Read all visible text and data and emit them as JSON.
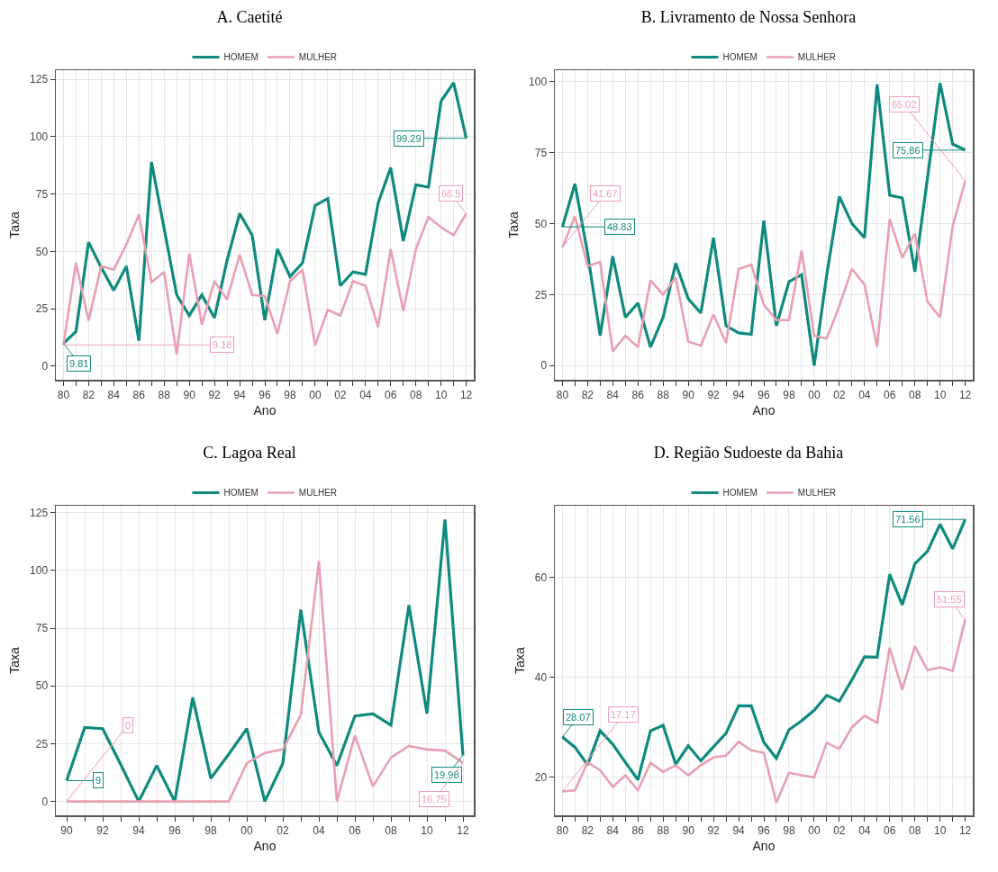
{
  "chart_data": [
    {
      "type": "line",
      "title": "A. Caetité",
      "xlabel": "Ano",
      "ylabel": "Taxa",
      "legend": "top",
      "grid": true,
      "x": [
        1980,
        1981,
        1982,
        1983,
        1984,
        1985,
        1986,
        1987,
        1988,
        1989,
        1990,
        1991,
        1992,
        1993,
        1994,
        1995,
        1996,
        1997,
        1998,
        1999,
        2000,
        2001,
        2002,
        2003,
        2004,
        2005,
        2006,
        2007,
        2008,
        2009,
        2010,
        2011,
        2012
      ],
      "xlim": [
        1979.4,
        2012.6
      ],
      "xticks": [
        {
          "value": 1980,
          "label": "80"
        },
        {
          "value": 1981,
          "label": null
        },
        {
          "value": 1982,
          "label": "82"
        },
        {
          "value": 1983,
          "label": null
        },
        {
          "value": 1984,
          "label": "84"
        },
        {
          "value": 1985,
          "label": null
        },
        {
          "value": 1986,
          "label": "86"
        },
        {
          "value": 1987,
          "label": null
        },
        {
          "value": 1988,
          "label": "88"
        },
        {
          "value": 1989,
          "label": null
        },
        {
          "value": 1990,
          "label": "90"
        },
        {
          "value": 1991,
          "label": null
        },
        {
          "value": 1992,
          "label": "92"
        },
        {
          "value": 1993,
          "label": null
        },
        {
          "value": 1994,
          "label": "94"
        },
        {
          "value": 1995,
          "label": null
        },
        {
          "value": 1996,
          "label": "96"
        },
        {
          "value": 1997,
          "label": null
        },
        {
          "value": 1998,
          "label": "98"
        },
        {
          "value": 1999,
          "label": null
        },
        {
          "value": 2000,
          "label": "00"
        },
        {
          "value": 2001,
          "label": null
        },
        {
          "value": 2002,
          "label": "02"
        },
        {
          "value": 2003,
          "label": null
        },
        {
          "value": 2004,
          "label": "04"
        },
        {
          "value": 2005,
          "label": null
        },
        {
          "value": 2006,
          "label": "06"
        },
        {
          "value": 2007,
          "label": null
        },
        {
          "value": 2008,
          "label": "08"
        },
        {
          "value": 2009,
          "label": null
        },
        {
          "value": 2010,
          "label": "10"
        },
        {
          "value": 2011,
          "label": null
        },
        {
          "value": 2012,
          "label": "12"
        }
      ],
      "ylim": [
        -6,
        129
      ],
      "yticks": [
        0,
        25,
        50,
        75,
        100,
        125
      ],
      "series": [
        {
          "name": "HOMEM",
          "color": "#0e8a7e",
          "values": [
            9.81,
            15,
            54,
            43,
            33,
            43.5,
            11,
            89,
            60,
            31,
            22,
            31,
            21,
            46,
            66.5,
            57,
            20,
            51,
            39,
            45,
            70,
            73,
            35,
            41,
            40,
            71,
            86.5,
            54.5,
            79,
            78,
            115.5,
            123.5,
            99.29
          ],
          "value_labels": [
            "9.81",
            null,
            null,
            null,
            null,
            null,
            null,
            null,
            null,
            null,
            null,
            null,
            null,
            null,
            null,
            null,
            null,
            null,
            null,
            null,
            null,
            null,
            null,
            null,
            null,
            null,
            null,
            null,
            null,
            null,
            null,
            null,
            "99.29"
          ]
        },
        {
          "name": "MULHER",
          "color": "#e8a0b0",
          "values": [
            9.18,
            45,
            19.7,
            43.5,
            42,
            53,
            66,
            36.5,
            41,
            5,
            49,
            18,
            37,
            29,
            48.5,
            31,
            30.5,
            14,
            37,
            42,
            9,
            24.5,
            22,
            37,
            35,
            17,
            51,
            24,
            51,
            65,
            60.5,
            57,
            66.5
          ],
          "value_labels": [
            "9.18",
            null,
            null,
            null,
            null,
            null,
            null,
            null,
            null,
            null,
            null,
            null,
            null,
            null,
            null,
            null,
            null,
            null,
            null,
            null,
            null,
            null,
            null,
            null,
            null,
            null,
            null,
            null,
            null,
            null,
            null,
            null,
            "66.5"
          ]
        }
      ]
    },
    {
      "type": "line",
      "title": "B. Livramento de Nossa Senhora",
      "xlabel": "Ano",
      "ylabel": "Taxa",
      "legend": "top",
      "grid": true,
      "x": [
        1980,
        1981,
        1982,
        1983,
        1984,
        1985,
        1986,
        1987,
        1988,
        1989,
        1990,
        1991,
        1992,
        1993,
        1994,
        1995,
        1996,
        1997,
        1998,
        1999,
        2000,
        2001,
        2002,
        2003,
        2004,
        2005,
        2006,
        2007,
        2008,
        2009,
        2010,
        2011,
        2012
      ],
      "xlim": [
        1979.4,
        2012.6
      ],
      "xticks": [
        {
          "value": 1980,
          "label": "80"
        },
        {
          "value": 1981,
          "label": null
        },
        {
          "value": 1982,
          "label": "82"
        },
        {
          "value": 1983,
          "label": null
        },
        {
          "value": 1984,
          "label": "84"
        },
        {
          "value": 1985,
          "label": null
        },
        {
          "value": 1986,
          "label": "86"
        },
        {
          "value": 1987,
          "label": null
        },
        {
          "value": 1988,
          "label": "88"
        },
        {
          "value": 1989,
          "label": null
        },
        {
          "value": 1990,
          "label": "90"
        },
        {
          "value": 1991,
          "label": null
        },
        {
          "value": 1992,
          "label": "92"
        },
        {
          "value": 1993,
          "label": null
        },
        {
          "value": 1994,
          "label": "94"
        },
        {
          "value": 1995,
          "label": null
        },
        {
          "value": 1996,
          "label": "96"
        },
        {
          "value": 1997,
          "label": null
        },
        {
          "value": 1998,
          "label": "98"
        },
        {
          "value": 1999,
          "label": null
        },
        {
          "value": 2000,
          "label": "00"
        },
        {
          "value": 2001,
          "label": null
        },
        {
          "value": 2002,
          "label": "02"
        },
        {
          "value": 2003,
          "label": null
        },
        {
          "value": 2004,
          "label": "04"
        },
        {
          "value": 2005,
          "label": null
        },
        {
          "value": 2006,
          "label": "06"
        },
        {
          "value": 2007,
          "label": null
        },
        {
          "value": 2008,
          "label": "08"
        },
        {
          "value": 2009,
          "label": null
        },
        {
          "value": 2010,
          "label": "10"
        },
        {
          "value": 2011,
          "label": null
        },
        {
          "value": 2012,
          "label": "12"
        }
      ],
      "ylim": [
        -5,
        104
      ],
      "yticks": [
        0,
        25,
        50,
        75,
        100
      ],
      "series": [
        {
          "name": "HOMEM",
          "color": "#0e8a7e",
          "values": [
            48.83,
            64,
            39.5,
            10.5,
            38.5,
            17,
            22,
            6.5,
            17,
            36,
            23.5,
            18.5,
            45,
            14,
            11.5,
            11,
            51,
            14,
            29.5,
            32,
            0,
            32,
            59.5,
            50,
            45,
            99,
            60,
            59,
            33,
            66,
            99.5,
            78,
            75.86
          ],
          "value_labels": [
            "48.83",
            null,
            null,
            null,
            null,
            null,
            null,
            null,
            null,
            null,
            null,
            null,
            null,
            null,
            null,
            null,
            null,
            null,
            null,
            null,
            null,
            null,
            null,
            null,
            null,
            null,
            null,
            null,
            null,
            null,
            null,
            null,
            "75.86"
          ]
        },
        {
          "name": "MULHER",
          "color": "#e8a0b0",
          "values": [
            41.67,
            52.5,
            35,
            36.5,
            5,
            10.5,
            6.5,
            30,
            25,
            31,
            8.5,
            7,
            18,
            8,
            34,
            35.5,
            21.5,
            16,
            16,
            40.5,
            10.5,
            9.5,
            21,
            34,
            28.5,
            6.5,
            51.5,
            38,
            46.5,
            22.5,
            17,
            49,
            65.02
          ],
          "value_labels": [
            "41.67",
            null,
            null,
            null,
            null,
            null,
            null,
            null,
            null,
            null,
            null,
            null,
            null,
            null,
            null,
            null,
            null,
            null,
            null,
            null,
            null,
            null,
            null,
            null,
            null,
            null,
            null,
            null,
            null,
            null,
            null,
            null,
            "65.02"
          ]
        }
      ]
    },
    {
      "type": "line",
      "title": "C. Lagoa Real",
      "xlabel": "Ano",
      "ylabel": "Taxa",
      "legend": "top",
      "grid": true,
      "x": [
        1990,
        1991,
        1992,
        1993,
        1994,
        1995,
        1996,
        1997,
        1998,
        1999,
        2000,
        2001,
        2002,
        2003,
        2004,
        2005,
        2006,
        2007,
        2008,
        2009,
        2010,
        2011,
        2012
      ],
      "xlim": [
        1989.4,
        2012.6
      ],
      "xticks": [
        {
          "value": 1990,
          "label": "90"
        },
        {
          "value": 1991,
          "label": null
        },
        {
          "value": 1992,
          "label": "92"
        },
        {
          "value": 1993,
          "label": null
        },
        {
          "value": 1994,
          "label": "94"
        },
        {
          "value": 1995,
          "label": null
        },
        {
          "value": 1996,
          "label": "96"
        },
        {
          "value": 1997,
          "label": null
        },
        {
          "value": 1998,
          "label": "98"
        },
        {
          "value": 1999,
          "label": null
        },
        {
          "value": 2000,
          "label": "00"
        },
        {
          "value": 2001,
          "label": null
        },
        {
          "value": 2002,
          "label": "02"
        },
        {
          "value": 2003,
          "label": null
        },
        {
          "value": 2004,
          "label": "04"
        },
        {
          "value": 2005,
          "label": null
        },
        {
          "value": 2006,
          "label": "06"
        },
        {
          "value": 2007,
          "label": null
        },
        {
          "value": 2008,
          "label": "08"
        },
        {
          "value": 2009,
          "label": null
        },
        {
          "value": 2010,
          "label": "10"
        },
        {
          "value": 2011,
          "label": null
        },
        {
          "value": 2012,
          "label": "12"
        }
      ],
      "ylim": [
        -6,
        128
      ],
      "yticks": [
        0,
        25,
        50,
        75,
        100,
        125
      ],
      "series": [
        {
          "name": "HOMEM",
          "color": "#0e8a7e",
          "values": [
            9,
            32,
            31.5,
            16,
            0,
            15.5,
            0,
            45,
            10,
            20.5,
            31.5,
            0,
            16.5,
            83,
            30,
            15.5,
            37,
            38,
            33,
            85,
            38,
            122,
            19.98
          ],
          "value_labels": [
            "9",
            null,
            null,
            null,
            null,
            null,
            null,
            null,
            null,
            null,
            null,
            null,
            null,
            null,
            null,
            null,
            null,
            null,
            null,
            null,
            null,
            null,
            "19.98"
          ]
        },
        {
          "name": "MULHER",
          "color": "#e8a0b0",
          "values": [
            0,
            0,
            0,
            0,
            0,
            0,
            0,
            0,
            0,
            0,
            16.5,
            21,
            22.5,
            37.5,
            104,
            0,
            28.5,
            6.5,
            19,
            24,
            22.5,
            22,
            16.75
          ],
          "value_labels": [
            "0",
            null,
            null,
            null,
            null,
            null,
            null,
            null,
            null,
            null,
            null,
            null,
            null,
            null,
            null,
            null,
            null,
            null,
            null,
            null,
            null,
            null,
            "16.75"
          ]
        }
      ]
    },
    {
      "type": "line",
      "title": "D. Região Sudoeste da Bahia",
      "xlabel": "Ano",
      "ylabel": "Taxa",
      "legend": "top",
      "grid": true,
      "x": [
        1980,
        1981,
        1982,
        1983,
        1984,
        1985,
        1986,
        1987,
        1988,
        1989,
        1990,
        1991,
        1992,
        1993,
        1994,
        1995,
        1996,
        1997,
        1998,
        1999,
        2000,
        2001,
        2002,
        2003,
        2004,
        2005,
        2006,
        2007,
        2008,
        2009,
        2010,
        2011,
        2012
      ],
      "xlim": [
        1979.4,
        2012.6
      ],
      "xticks": [
        {
          "value": 1980,
          "label": "80"
        },
        {
          "value": 1981,
          "label": null
        },
        {
          "value": 1982,
          "label": "82"
        },
        {
          "value": 1983,
          "label": null
        },
        {
          "value": 1984,
          "label": "84"
        },
        {
          "value": 1985,
          "label": null
        },
        {
          "value": 1986,
          "label": "86"
        },
        {
          "value": 1987,
          "label": null
        },
        {
          "value": 1988,
          "label": "88"
        },
        {
          "value": 1989,
          "label": null
        },
        {
          "value": 1990,
          "label": "90"
        },
        {
          "value": 1991,
          "label": null
        },
        {
          "value": 1992,
          "label": "92"
        },
        {
          "value": 1993,
          "label": null
        },
        {
          "value": 1994,
          "label": "94"
        },
        {
          "value": 1995,
          "label": null
        },
        {
          "value": 1996,
          "label": "96"
        },
        {
          "value": 1997,
          "label": null
        },
        {
          "value": 1998,
          "label": "98"
        },
        {
          "value": 1999,
          "label": null
        },
        {
          "value": 2000,
          "label": "00"
        },
        {
          "value": 2001,
          "label": null
        },
        {
          "value": 2002,
          "label": "02"
        },
        {
          "value": 2003,
          "label": null
        },
        {
          "value": 2004,
          "label": "04"
        },
        {
          "value": 2005,
          "label": null
        },
        {
          "value": 2006,
          "label": "06"
        },
        {
          "value": 2007,
          "label": null
        },
        {
          "value": 2008,
          "label": "08"
        },
        {
          "value": 2009,
          "label": null
        },
        {
          "value": 2010,
          "label": "10"
        },
        {
          "value": 2011,
          "label": null
        },
        {
          "value": 2012,
          "label": "12"
        }
      ],
      "ylim": [
        12.4,
        74.3
      ],
      "yticks": [
        20,
        40,
        60
      ],
      "series": [
        {
          "name": "HOMEM",
          "color": "#0e8a7e",
          "values": [
            28.07,
            26,
            22.5,
            29.3,
            26.6,
            23,
            19.5,
            29.3,
            30.4,
            22.6,
            26.3,
            23.3,
            26.1,
            28.8,
            34.3,
            34.3,
            27,
            23.8,
            29.5,
            31.3,
            33.4,
            36.4,
            35.2,
            39.5,
            44.1,
            44,
            60.6,
            54.5,
            62.7,
            65.2,
            70.6,
            65.7,
            71.56
          ],
          "value_labels": [
            "28.07",
            null,
            null,
            null,
            null,
            null,
            null,
            null,
            null,
            null,
            null,
            null,
            null,
            null,
            null,
            null,
            null,
            null,
            null,
            null,
            null,
            null,
            null,
            null,
            null,
            null,
            null,
            null,
            null,
            null,
            null,
            null,
            "71.56"
          ]
        },
        {
          "name": "MULHER",
          "color": "#e8a0b0",
          "values": [
            17.17,
            17.4,
            23,
            21.4,
            18.1,
            20.4,
            17.4,
            22.9,
            21.1,
            22.4,
            20.4,
            22.4,
            24,
            24.3,
            27.1,
            25.4,
            24.9,
            14.9,
            20.9,
            20.4,
            20,
            26.9,
            25.7,
            30,
            32.3,
            30.9,
            45.9,
            37.5,
            46.2,
            41.4,
            42,
            41.3,
            51.55
          ],
          "value_labels": [
            "17.17",
            null,
            null,
            null,
            null,
            null,
            null,
            null,
            null,
            null,
            null,
            null,
            null,
            null,
            null,
            null,
            null,
            null,
            null,
            null,
            null,
            null,
            null,
            null,
            null,
            null,
            null,
            null,
            null,
            null,
            null,
            null,
            "51.55"
          ]
        }
      ]
    }
  ]
}
